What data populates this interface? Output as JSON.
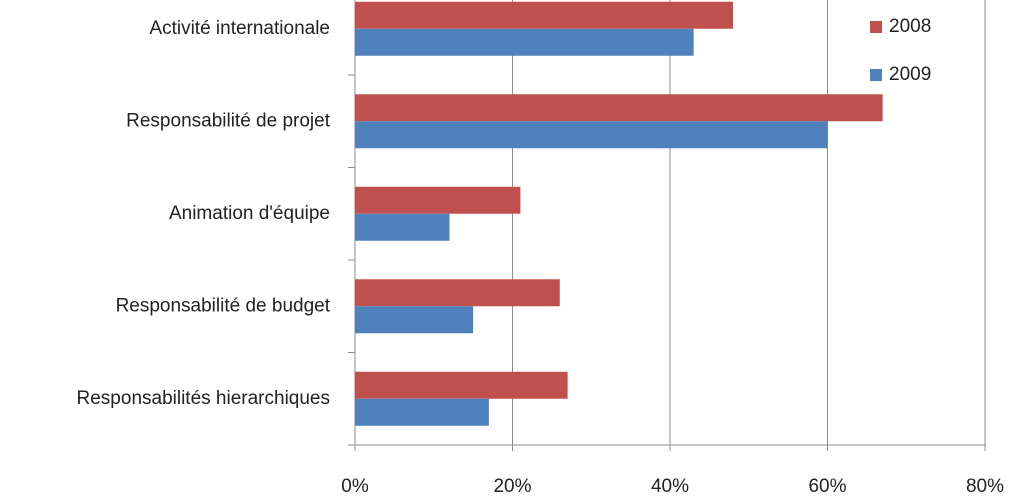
{
  "chart_data": {
    "type": "barh",
    "categories": [
      "Activité internationale",
      "Responsabilité de projet",
      "Animation d'équipe",
      "Responsabilité de budget",
      "Responsabilités hierarchiques"
    ],
    "series": [
      {
        "name": "2008",
        "color": "#c0504d",
        "values": [
          48,
          67,
          21,
          26,
          27
        ]
      },
      {
        "name": "2009",
        "color": "#4f81bd",
        "values": [
          43,
          60,
          12,
          15,
          17
        ]
      }
    ],
    "xlim": [
      0,
      80
    ],
    "xticks": [
      {
        "value": 0,
        "label": "0%"
      },
      {
        "value": 20,
        "label": "20%"
      },
      {
        "value": 40,
        "label": "40%"
      },
      {
        "value": 60,
        "label": "60%"
      },
      {
        "value": 80,
        "label": "80%"
      }
    ],
    "grid": true,
    "legend": "top-right"
  }
}
